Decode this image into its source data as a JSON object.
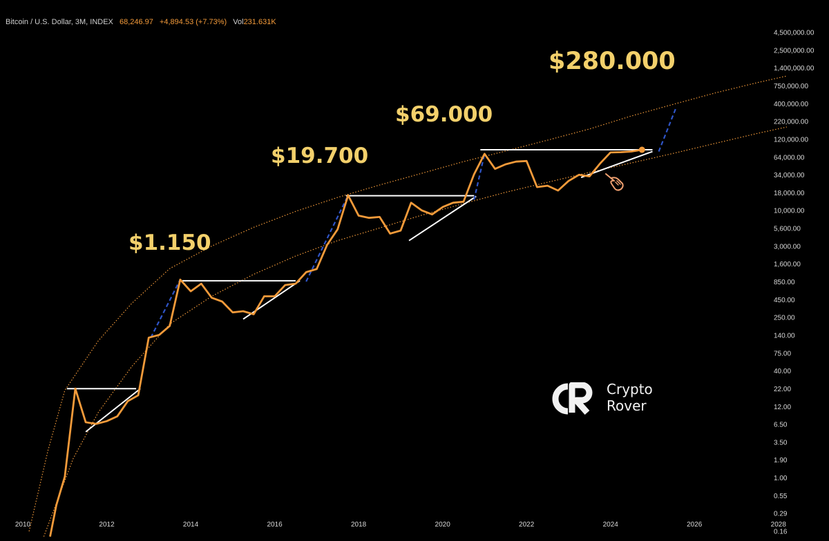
{
  "header": {
    "symbol": "Bitcoin / U.S. Dollar, 3M, INDEX",
    "price": "68,246.97",
    "change": "+4,894.53 (+7.73%)",
    "volume_label": "Vol",
    "volume": "231.631K"
  },
  "watermark": {
    "line1": "Crypto",
    "line2": "Rover"
  },
  "colors": {
    "price_line": "#f29a3a",
    "trend_line": "#ffffff",
    "projection": "#2f55c8",
    "band": "#f29a3a",
    "peak_labels": "#f3d06b",
    "background": "#000000"
  },
  "icons": [
    "crypto-rover-logo-icon",
    "pointing-hand-icon"
  ],
  "chart_data": {
    "type": "line",
    "scale": "log",
    "ylim": [
      0.12,
      6000000
    ],
    "xlim": [
      2010,
      2028.3
    ],
    "y_ticks": [
      "4,500,000.00",
      "2,500,000.00",
      "1,400,000.00",
      "750,000.00",
      "400,000.00",
      "220,000.00",
      "120,000.00",
      "64,000.00",
      "34,000.00",
      "18,000.00",
      "10,000.00",
      "5,600.00",
      "3,000.00",
      "1,600.00",
      "850.00",
      "450.00",
      "250.00",
      "140.00",
      "75.00",
      "40.00",
      "22.00",
      "12.00",
      "6.50",
      "3.50",
      "1.90",
      "1.00",
      "0.55",
      "0.29",
      "0.16"
    ],
    "x_ticks": [
      "2010",
      "2012",
      "2014",
      "2016",
      "2018",
      "2020",
      "2022",
      "2024",
      "2026",
      "2028"
    ],
    "grid": false,
    "peak_labels": [
      {
        "text": "$1.150",
        "value": 1150
      },
      {
        "text": "$19.700",
        "value": 19700
      },
      {
        "text": "$69.000",
        "value": 69000
      },
      {
        "text": "$280.000",
        "value": 280000
      }
    ],
    "series": [
      {
        "x": [
          2010.65,
          2010.8,
          2011.0,
          2011.25,
          2011.5,
          2011.75,
          2012.0,
          2012.25,
          2012.5,
          2012.75,
          2013.0,
          2013.25,
          2013.5,
          2013.75,
          2014.0,
          2014.25,
          2014.5,
          2014.75,
          2015.0,
          2015.25,
          2015.5,
          2015.75,
          2016.0,
          2016.25,
          2016.5,
          2016.75,
          2017.0,
          2017.25,
          2017.5,
          2017.75,
          2018.0,
          2018.25,
          2018.5,
          2018.75,
          2019.0,
          2019.25,
          2019.5,
          2019.75,
          2020.0,
          2020.25,
          2020.5,
          2020.75,
          2021.0,
          2021.25,
          2021.5,
          2021.75,
          2022.0,
          2022.25,
          2022.5,
          2022.75,
          2023.0,
          2023.25,
          2023.5,
          2023.75,
          2024.0,
          2024.25,
          2024.5,
          2024.75
        ],
        "y": [
          0.1,
          0.3,
          0.8,
          17,
          5.3,
          5,
          5.5,
          6.5,
          11,
          13.5,
          100,
          110,
          150,
          750,
          500,
          650,
          400,
          350,
          240,
          250,
          225,
          420,
          420,
          620,
          650,
          970,
          1080,
          2500,
          4300,
          14000,
          6900,
          6400,
          6600,
          3700,
          4100,
          10800,
          8300,
          7200,
          9300,
          10800,
          11200,
          29000,
          59000,
          35000,
          41000,
          45000,
          46000,
          18600,
          19500,
          16500,
          23000,
          28500,
          27000,
          42000,
          62000,
          62500,
          64000,
          68000
        ]
      }
    ],
    "projection": [
      {
        "x": [
          2013.05,
          2013.75
        ],
        "y": [
          100,
          750
        ]
      },
      {
        "x": [
          2016.75,
          2017.75
        ],
        "y": [
          700,
          14000
        ]
      },
      {
        "x": [
          2020.75,
          2021.0
        ],
        "y": [
          12000,
          59000
        ]
      },
      {
        "x": [
          2025.15,
          2025.55
        ],
        "y": [
          64000,
          280000
        ]
      }
    ],
    "trend_lines": [
      {
        "x": [
          2011.05,
          2012.7
        ],
        "y": [
          17,
          17
        ]
      },
      {
        "x": [
          2011.5,
          2012.8
        ],
        "y": [
          3.8,
          17
        ]
      },
      {
        "x": [
          2013.8,
          2016.5
        ],
        "y": [
          720,
          720
        ]
      },
      {
        "x": [
          2015.25,
          2016.6
        ],
        "y": [
          190,
          720
        ]
      },
      {
        "x": [
          2017.7,
          2020.75
        ],
        "y": [
          13800,
          13800
        ]
      },
      {
        "x": [
          2019.2,
          2020.8
        ],
        "y": [
          2900,
          13500
        ]
      },
      {
        "x": [
          2020.9,
          2025.0
        ],
        "y": [
          68000,
          68000
        ]
      },
      {
        "x": [
          2023.3,
          2025.0
        ],
        "y": [
          26000,
          64000
        ]
      }
    ],
    "band": {
      "upper": {
        "x": [
          2010.15,
          2010.6,
          2011.0,
          2011.8,
          2012.6,
          2013.5,
          2014.5,
          2015.5,
          2016.5,
          2017.5,
          2018.5,
          2019.5,
          2020.5,
          2021.5,
          2022.5,
          2023.5,
          2024.5,
          2025.5,
          2026.5,
          2027.5,
          2028.2
        ],
        "y": [
          0.12,
          2,
          16,
          90,
          330,
          1100,
          2400,
          4600,
          8000,
          13000,
          20000,
          30000,
          45000,
          65000,
          95000,
          140000,
          220000,
          330000,
          490000,
          700000,
          880000
        ]
      },
      "lower": {
        "x": [
          2010.5,
          2011.2,
          2011.8,
          2012.6,
          2013.5,
          2014.5,
          2015.5,
          2016.5,
          2017.5,
          2018.5,
          2019.5,
          2020.5,
          2021.5,
          2022.5,
          2023.5,
          2024.5,
          2025.5,
          2026.5,
          2027.5,
          2028.2
        ],
        "y": [
          0.1,
          1.5,
          7.5,
          37,
          160,
          420,
          900,
          1700,
          2900,
          4500,
          7000,
          10500,
          15500,
          22000,
          31000,
          43000,
          60000,
          85000,
          120000,
          150000
        ]
      }
    },
    "last_point": {
      "x": 2024.75,
      "y": 68000
    }
  }
}
